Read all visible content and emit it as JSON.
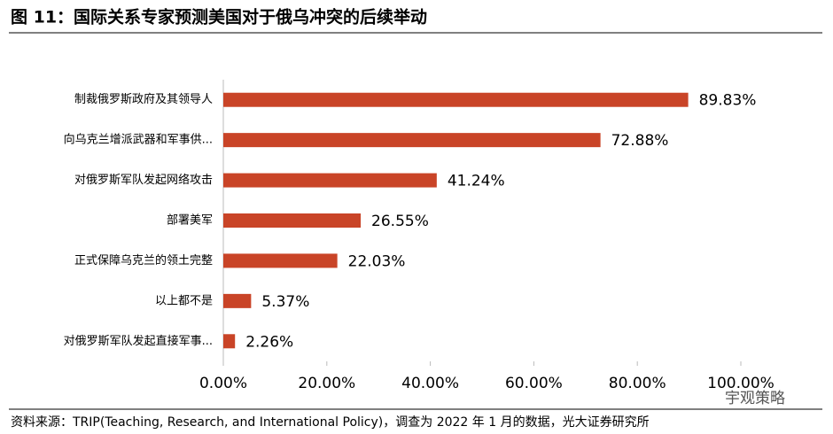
{
  "chart_data": {
    "type": "bar",
    "title": "图 11：国际关系专家预测美国对于俄乌冲突的后续举动",
    "categories": [
      "制裁俄罗斯政府及其领导人",
      "向乌克兰增派武器和军事供...",
      "对俄罗斯军队发起网络攻击",
      "部署美军",
      "正式保障乌克兰的领土完整",
      "以上都不是",
      "对俄罗斯军队发起直接军事..."
    ],
    "values": [
      89.83,
      72.88,
      41.24,
      26.55,
      22.03,
      5.37,
      2.26
    ],
    "value_labels": [
      "89.83%",
      "72.88%",
      "41.24%",
      "26.55%",
      "22.03%",
      "5.37%",
      "2.26%"
    ],
    "color": "#c94427",
    "xlim": [
      0,
      100
    ],
    "xticks": [
      {
        "value": 0,
        "label": "0.00%"
      },
      {
        "value": 20,
        "label": "20.00%"
      },
      {
        "value": 40,
        "label": "40.00%"
      },
      {
        "value": 60,
        "label": "60.00%"
      },
      {
        "value": 80,
        "label": "80.00%"
      },
      {
        "value": 100,
        "label": "100.00%"
      }
    ],
    "source": "资料来源：TRIP(Teaching, Research, and International Policy)，调查为 2022 年 1 月的数据，光大证券研究所",
    "watermark": "宇观策略"
  }
}
